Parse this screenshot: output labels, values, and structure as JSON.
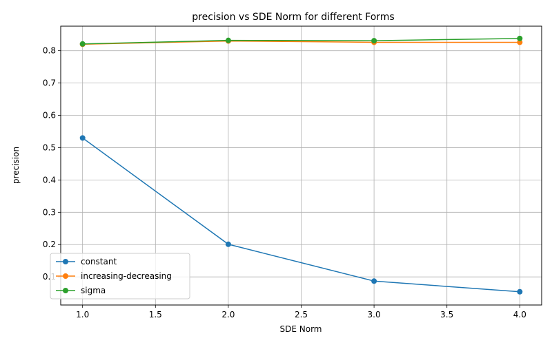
{
  "chart_data": {
    "type": "line",
    "title": "precision vs SDE Norm for different Forms",
    "xlabel": "SDE Norm",
    "ylabel": "precision",
    "x": [
      1.0,
      2.0,
      3.0,
      4.0
    ],
    "xlim": [
      0.85,
      4.15
    ],
    "ylim": [
      0.013,
      0.876
    ],
    "xticks": [
      1.0,
      1.5,
      2.0,
      2.5,
      3.0,
      3.5,
      4.0
    ],
    "xtick_labels": [
      "1.0",
      "1.5",
      "2.0",
      "2.5",
      "3.0",
      "3.5",
      "4.0"
    ],
    "yticks": [
      0.1,
      0.2,
      0.3,
      0.4,
      0.5,
      0.6,
      0.7,
      0.8
    ],
    "ytick_labels": [
      "0.1",
      "0.2",
      "0.3",
      "0.4",
      "0.5",
      "0.6",
      "0.7",
      "0.8"
    ],
    "grid": true,
    "legend_position": "lower-left",
    "series": [
      {
        "name": "constant",
        "color": "#1f77b4",
        "values": [
          0.53,
          0.201,
          0.087,
          0.054
        ]
      },
      {
        "name": "increasing-decreasing",
        "color": "#ff7f0e",
        "values": [
          0.82,
          0.83,
          0.826,
          0.826
        ]
      },
      {
        "name": "sigma",
        "color": "#2ca02c",
        "values": [
          0.821,
          0.832,
          0.831,
          0.838
        ]
      }
    ]
  }
}
